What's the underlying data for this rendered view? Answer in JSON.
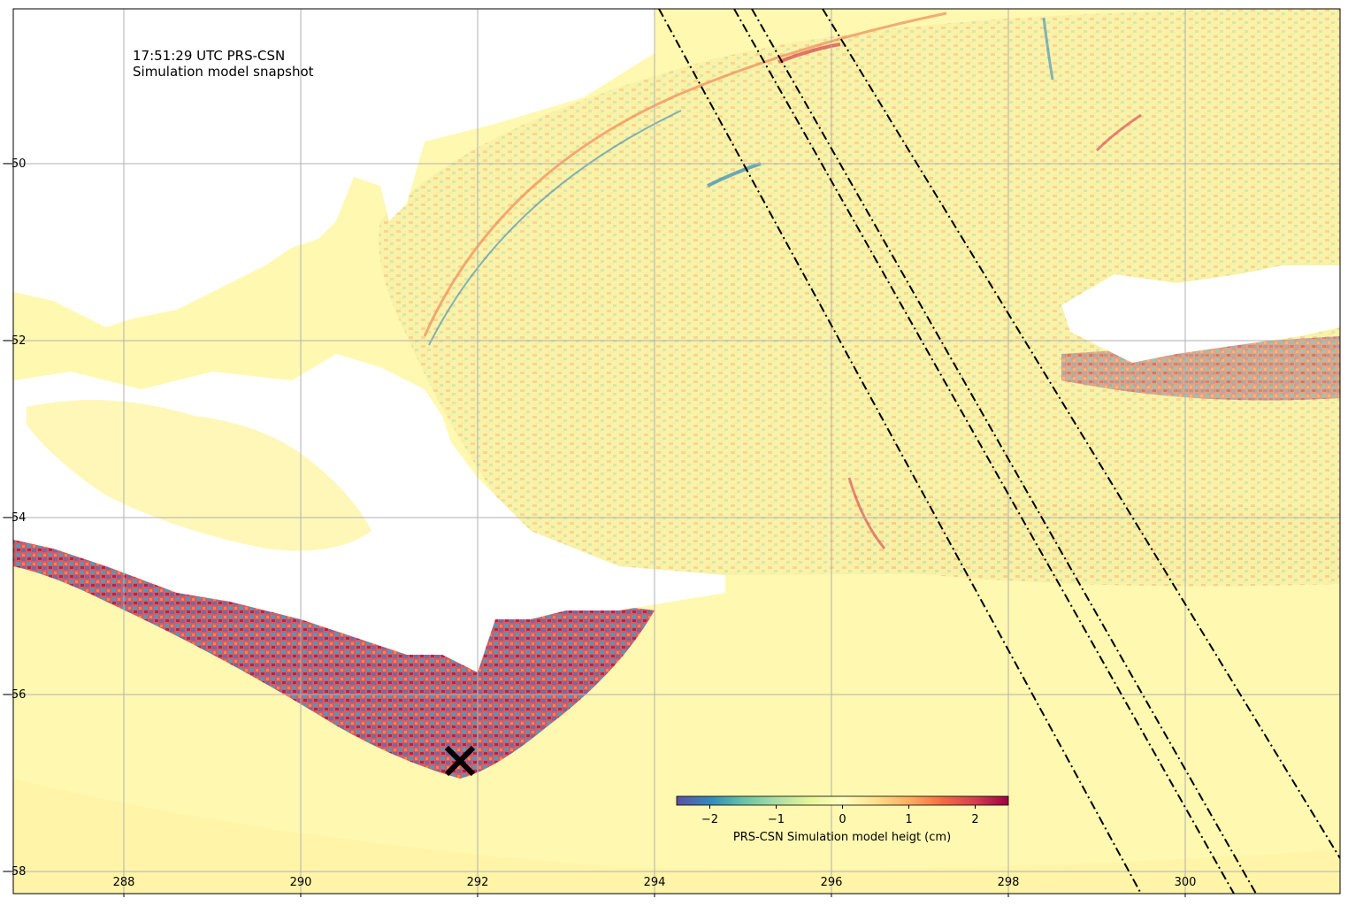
{
  "annotation": {
    "line1": "17:51:29 UTC PRS-CSN",
    "line2": "Simulation model snapshot"
  },
  "colorbar": {
    "label": "PRS-CSN Simulation model heigt (cm)",
    "range": [
      -2.5,
      2.5
    ],
    "ticks": [
      "−2",
      "−1",
      "0",
      "1",
      "2"
    ],
    "tick_values": [
      -2,
      -1,
      0,
      1,
      2
    ],
    "colormap": "Spectral_r",
    "colors": [
      "#5e4fa2",
      "#3288bd",
      "#66c2a5",
      "#abdda4",
      "#e6f598",
      "#ffffbf",
      "#fee08b",
      "#fdae61",
      "#f46d43",
      "#d53e4f",
      "#9e0142"
    ]
  },
  "axes": {
    "x_ticks": [
      "288",
      "290",
      "292",
      "294",
      "296",
      "298",
      "300"
    ],
    "x_tick_values": [
      288,
      290,
      292,
      294,
      296,
      298,
      300
    ],
    "y_ticks": [
      "−50",
      "−52",
      "−54",
      "−56",
      "−58"
    ],
    "y_tick_values": [
      -50,
      -52,
      -54,
      -56,
      -58
    ],
    "xlim": [
      286.75,
      301.75
    ],
    "ylim": [
      -58.25,
      -48.25
    ],
    "grid": true
  },
  "epicenter": {
    "lon": 291.8,
    "lat": -56.75,
    "marker": "x-icon"
  },
  "tracks": [
    {
      "start": [
        294.05,
        -48.25
      ],
      "end": [
        299.5,
        -58.25
      ]
    },
    {
      "start": [
        294.9,
        -48.25
      ],
      "end": [
        300.55,
        -58.25
      ]
    },
    {
      "start": [
        295.1,
        -48.25
      ],
      "end": [
        300.8,
        -58.25
      ]
    },
    {
      "start": [
        295.9,
        -48.25
      ],
      "end": [
        301.75,
        -57.85
      ]
    }
  ],
  "colors": {
    "background_sea": "#fff8b0",
    "land": "#ffffff",
    "grid": "#b0b0b0",
    "track": "#000000"
  }
}
